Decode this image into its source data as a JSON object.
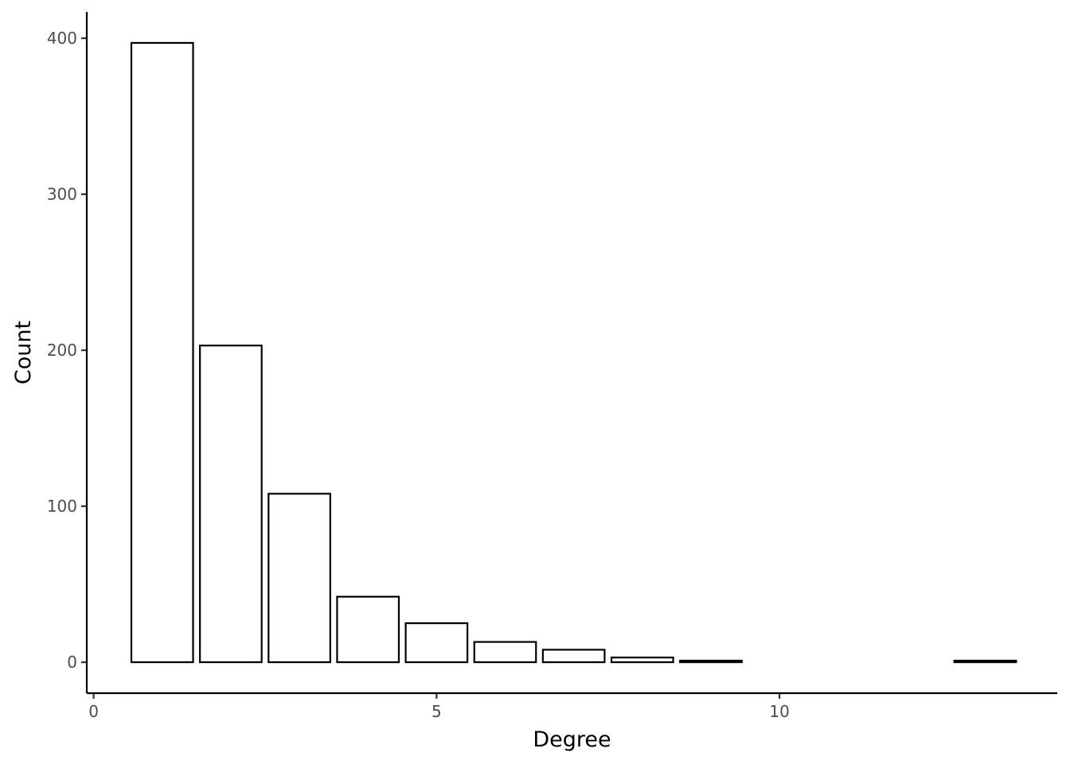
{
  "chart_data": {
    "type": "bar",
    "title": "",
    "xlabel": "Degree",
    "ylabel": "Count",
    "x": [
      1,
      2,
      3,
      4,
      5,
      6,
      7,
      8,
      9,
      13
    ],
    "values": [
      397,
      203,
      108,
      42,
      25,
      13,
      8,
      3,
      1,
      1
    ],
    "xlim": [
      -0.1,
      14.05
    ],
    "ylim": [
      -19.85,
      416.85
    ],
    "x_ticks": [
      0,
      5,
      10
    ],
    "y_ticks": [
      0,
      100,
      200,
      300,
      400
    ],
    "bar_width": 0.9,
    "bar_fill": "#ffffff",
    "bar_stroke": "#000000",
    "grid": false,
    "legend": "none"
  }
}
